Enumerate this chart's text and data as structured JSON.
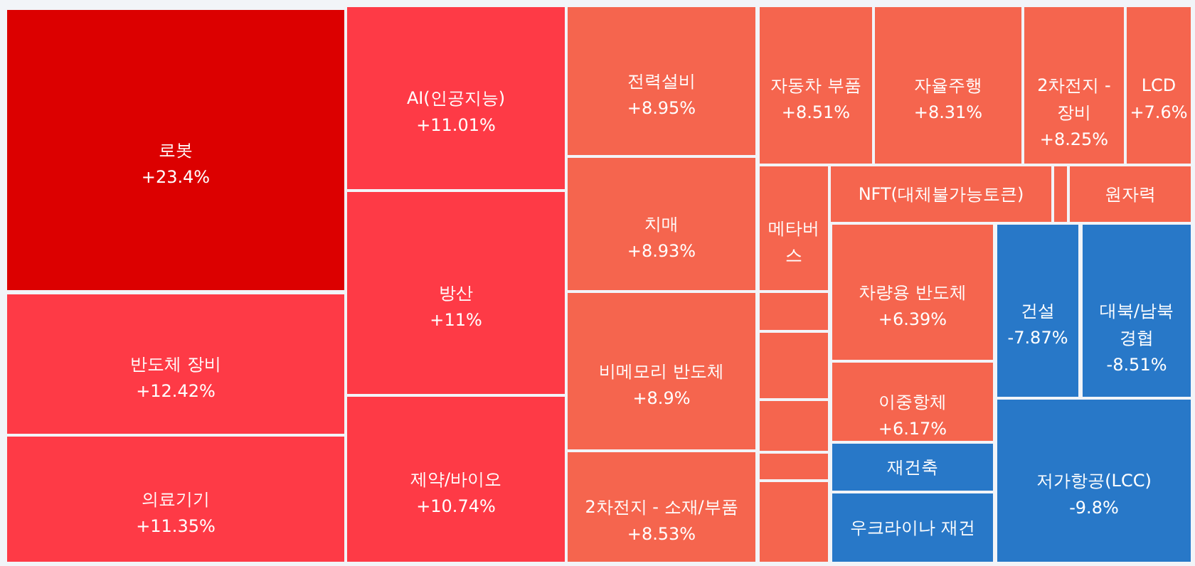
{
  "chart_data": {
    "type": "other",
    "categories": [
      "로봇",
      "AI(인공지능)",
      "방산",
      "반도체 장비",
      "의료기기",
      "제약/바이오",
      "전력설비",
      "치매",
      "비메모리 반도체",
      "2차전지 - 소재/부품",
      "자동차 부품",
      "자율주행",
      "2차전지 - 장비",
      "LCD",
      "메타버스",
      "NFT(대체불가능토큰)",
      null,
      "원자력",
      "차량용 반도체",
      "이중항체",
      "재건축",
      "우크라이나 재건",
      "건설",
      "대북/남북 경협",
      "저가항공(LCC)",
      null,
      null,
      null,
      null,
      null
    ],
    "values": [
      23.4,
      11.01,
      11,
      12.42,
      11.35,
      10.74,
      8.95,
      8.93,
      8.9,
      8.53,
      8.51,
      8.31,
      8.25,
      7.6,
      null,
      null,
      null,
      null,
      6.39,
      6.17,
      null,
      null,
      -7.87,
      -8.51,
      -9.8,
      null,
      null,
      null,
      null,
      null
    ],
    "value_labels": [
      "+23.4%",
      "+11.01%",
      "+11%",
      "+12.42%",
      "+11.35%",
      "+10.74%",
      "+8.95%",
      "+8.93%",
      "+8.9%",
      "+8.53%",
      "+8.51%",
      "+8.31%",
      "+8.25%",
      "+7.6%",
      null,
      null,
      null,
      null,
      "+6.39%",
      "+6.17%",
      null,
      null,
      "-7.87%",
      "-8.51%",
      "-9.8%",
      null,
      null,
      null,
      null,
      null
    ],
    "colors": [
      "#dc0000",
      "#fe3a46",
      "#fe3a46",
      "#fe3a46",
      "#fe3a46",
      "#fe3a46",
      "#f5654e",
      "#f5654e",
      "#f5654e",
      "#f5654e",
      "#f5654e",
      "#f5654e",
      "#f5654e",
      "#f5654e",
      "#f5654e",
      "#f5654e",
      "#f5654e",
      "#f5654e",
      "#f5654e",
      "#f5654e",
      "#2878c8",
      "#2878c8",
      "#2878c8",
      "#2878c8",
      "#2878c8",
      "#f5654e",
      "#f5654e",
      "#f5654e",
      "#f5654e",
      "#f5654e"
    ]
  }
}
